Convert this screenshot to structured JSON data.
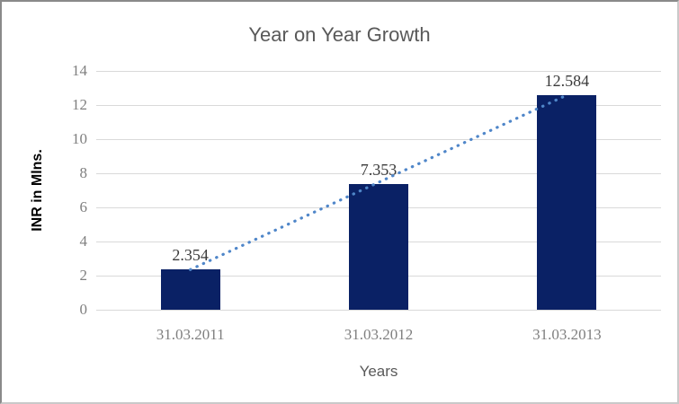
{
  "chart_data": {
    "type": "bar",
    "title": "Year on Year Growth",
    "xlabel": "Years",
    "ylabel": "INR in Mlns.",
    "categories": [
      "31.03.2011",
      "31.03.2012",
      "31.03.2013"
    ],
    "values": [
      2.354,
      7.353,
      12.584
    ],
    "data_labels": [
      "2.354",
      "7.353",
      "12.584"
    ],
    "ylim": [
      0,
      14
    ],
    "yticks": [
      0,
      2,
      4,
      6,
      8,
      10,
      12,
      14
    ],
    "grid": true,
    "legend": "none",
    "trendline": {
      "type": "linear",
      "style": "dotted",
      "color": "#4f86c9"
    },
    "colors": {
      "bar": "#0a2165",
      "gridline": "#d9d9d9",
      "title_text": "#595959",
      "tick_text": "#7f7f7f",
      "data_label_text": "#3a3a3a",
      "axis_title_text": "#000000"
    }
  }
}
